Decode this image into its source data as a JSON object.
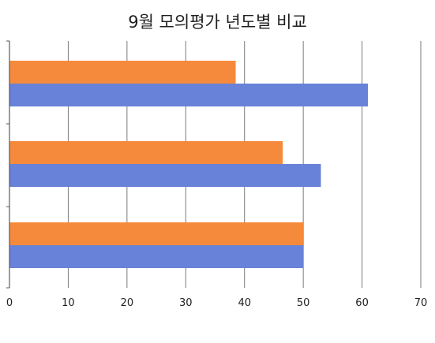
{
  "chart_data": {
    "type": "bar",
    "orientation": "horizontal",
    "title": "9월 모의평가 년도별 비교",
    "xlabel": "",
    "ylabel": "",
    "xlim": [
      0,
      70
    ],
    "x_ticks": [
      0,
      10,
      20,
      30,
      40,
      50,
      60,
      70
    ],
    "categories": [
      "",
      "",
      ""
    ],
    "series": [
      {
        "values": [
          38.5,
          46.5,
          50
        ],
        "color": "#f68a3c"
      },
      {
        "values": [
          61,
          53,
          50
        ],
        "color": "#6782d8"
      }
    ],
    "grid": true,
    "legend": "none"
  }
}
